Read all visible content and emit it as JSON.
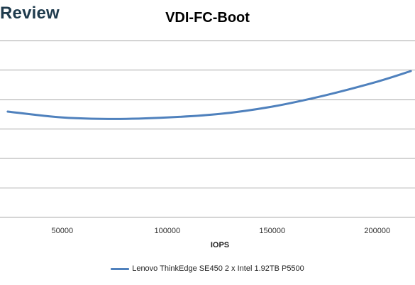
{
  "brand": {
    "text": "Review"
  },
  "chart_data": {
    "type": "line",
    "title": "VDI-FC-Boot",
    "xlabel": "IOPS",
    "ylabel": "",
    "xlim": [
      22000,
      218000
    ],
    "ylim": [
      0,
      6
    ],
    "x_ticks": [
      "50000",
      "100000",
      "150000",
      "200000"
    ],
    "y_gridlines": 6,
    "y_ticks_visible": false,
    "grid": true,
    "legend_position": "bottom",
    "series": [
      {
        "name": "Lenovo ThinkEdge SE450 2 x Intel 1.92TB P5500",
        "color": "#4f81bd",
        "x": [
          24000,
          50000,
          75000,
          100000,
          125000,
          150000,
          175000,
          200000,
          216000
        ],
        "y": [
          3.58,
          3.38,
          3.33,
          3.38,
          3.5,
          3.75,
          4.13,
          4.6,
          4.96
        ]
      }
    ]
  }
}
